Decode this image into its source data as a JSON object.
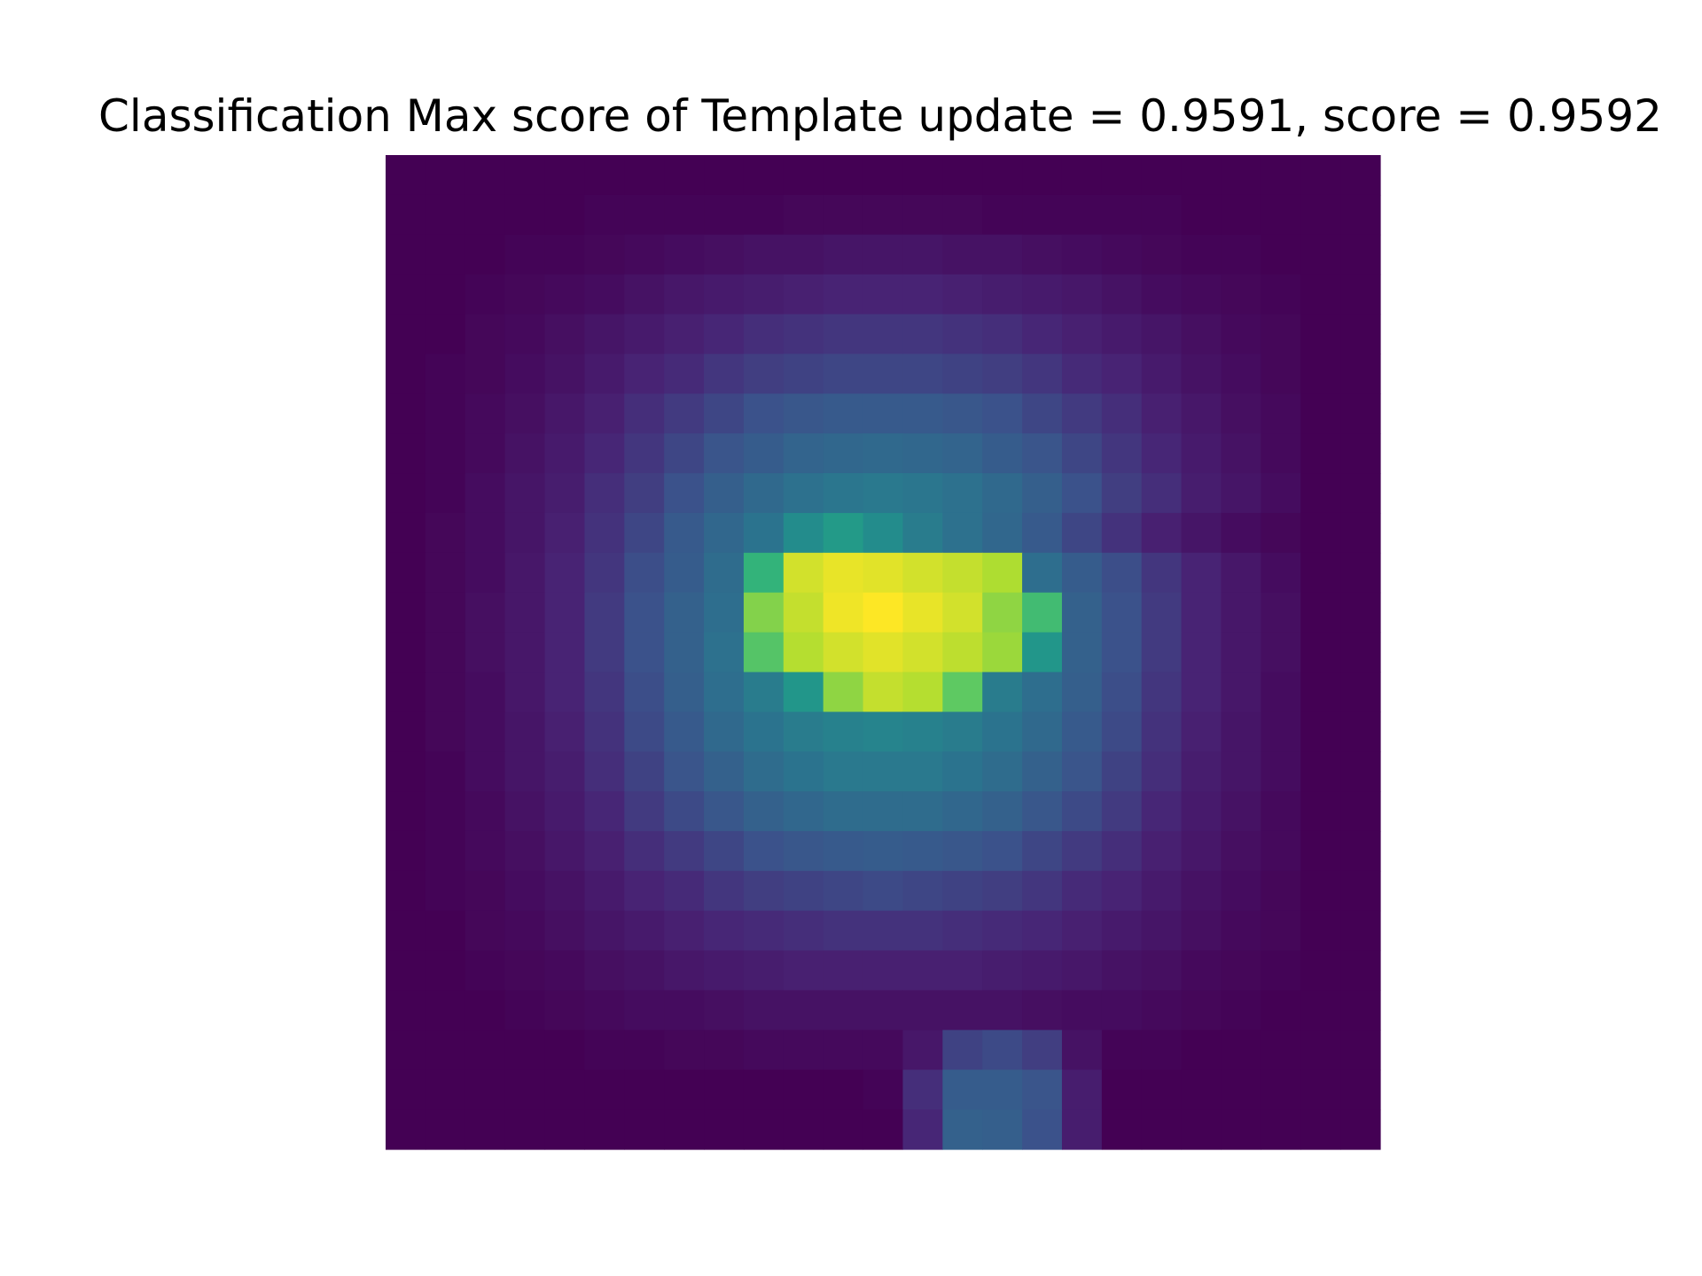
{
  "chart_data": {
    "type": "heatmap",
    "title": "Classification Max score of Template update = 0.9591, score = 0.9592",
    "colormap": "viridis",
    "axes_visible": false,
    "grid": false,
    "legend": "none",
    "rows": 25,
    "cols": 25,
    "vmin": 0.0,
    "vmax": 0.9592,
    "values": [
      [
        0,
        0,
        0,
        0,
        0,
        0,
        0,
        0,
        0,
        0,
        0,
        0,
        0,
        0,
        0,
        0,
        0,
        0,
        0,
        0,
        0,
        0,
        0,
        0,
        0
      ],
      [
        0,
        0,
        0,
        0,
        0,
        0.01,
        0.01,
        0.01,
        0.01,
        0.01,
        0.02,
        0.02,
        0.02,
        0.02,
        0.02,
        0.01,
        0.01,
        0.01,
        0.01,
        0.01,
        0,
        0,
        0,
        0,
        0
      ],
      [
        0,
        0,
        0,
        0.01,
        0.01,
        0.02,
        0.03,
        0.04,
        0.05,
        0.06,
        0.06,
        0.07,
        0.07,
        0.07,
        0.06,
        0.06,
        0.05,
        0.04,
        0.03,
        0.02,
        0.01,
        0.01,
        0,
        0,
        0
      ],
      [
        0,
        0,
        0.01,
        0.02,
        0.03,
        0.04,
        0.06,
        0.08,
        0.09,
        0.1,
        0.11,
        0.12,
        0.12,
        0.12,
        0.11,
        0.1,
        0.09,
        0.08,
        0.06,
        0.04,
        0.03,
        0.02,
        0.01,
        0,
        0
      ],
      [
        0,
        0,
        0.02,
        0.03,
        0.05,
        0.07,
        0.09,
        0.11,
        0.13,
        0.15,
        0.16,
        0.17,
        0.17,
        0.17,
        0.16,
        0.15,
        0.13,
        0.11,
        0.09,
        0.07,
        0.05,
        0.03,
        0.02,
        0,
        0
      ],
      [
        0,
        0.01,
        0.02,
        0.04,
        0.06,
        0.09,
        0.12,
        0.14,
        0.17,
        0.19,
        0.2,
        0.21,
        0.21,
        0.21,
        0.2,
        0.19,
        0.17,
        0.14,
        0.12,
        0.09,
        0.06,
        0.04,
        0.02,
        0,
        0
      ],
      [
        0,
        0.01,
        0.03,
        0.05,
        0.08,
        0.11,
        0.15,
        0.18,
        0.21,
        0.24,
        0.26,
        0.27,
        0.27,
        0.27,
        0.26,
        0.24,
        0.21,
        0.18,
        0.15,
        0.11,
        0.08,
        0.05,
        0.03,
        0,
        0
      ],
      [
        0,
        0.01,
        0.03,
        0.06,
        0.09,
        0.13,
        0.17,
        0.21,
        0.25,
        0.28,
        0.31,
        0.32,
        0.33,
        0.32,
        0.31,
        0.28,
        0.25,
        0.21,
        0.17,
        0.13,
        0.09,
        0.06,
        0.03,
        0,
        0
      ],
      [
        0,
        0.01,
        0.04,
        0.07,
        0.1,
        0.15,
        0.19,
        0.24,
        0.29,
        0.33,
        0.36,
        0.38,
        0.39,
        0.38,
        0.36,
        0.33,
        0.29,
        0.24,
        0.19,
        0.15,
        0.1,
        0.07,
        0.04,
        0,
        0
      ],
      [
        0,
        0.02,
        0.04,
        0.07,
        0.11,
        0.16,
        0.21,
        0.27,
        0.32,
        0.37,
        0.46,
        0.52,
        0.46,
        0.4,
        0.36,
        0.32,
        0.27,
        0.21,
        0.16,
        0.11,
        0.07,
        0.04,
        0.02,
        0,
        0
      ],
      [
        0,
        0.02,
        0.04,
        0.08,
        0.12,
        0.17,
        0.23,
        0.28,
        0.34,
        0.63,
        0.9,
        0.93,
        0.92,
        0.9,
        0.88,
        0.85,
        0.35,
        0.28,
        0.23,
        0.17,
        0.12,
        0.08,
        0.04,
        0,
        0
      ],
      [
        0,
        0.02,
        0.05,
        0.08,
        0.12,
        0.18,
        0.24,
        0.3,
        0.35,
        0.78,
        0.88,
        0.94,
        0.96,
        0.93,
        0.9,
        0.8,
        0.66,
        0.3,
        0.24,
        0.18,
        0.12,
        0.08,
        0.05,
        0,
        0
      ],
      [
        0,
        0.02,
        0.05,
        0.08,
        0.12,
        0.18,
        0.24,
        0.3,
        0.36,
        0.7,
        0.86,
        0.9,
        0.92,
        0.9,
        0.87,
        0.82,
        0.5,
        0.3,
        0.24,
        0.18,
        0.12,
        0.08,
        0.05,
        0,
        0
      ],
      [
        0,
        0.02,
        0.04,
        0.08,
        0.12,
        0.17,
        0.23,
        0.29,
        0.35,
        0.4,
        0.5,
        0.8,
        0.88,
        0.86,
        0.72,
        0.4,
        0.35,
        0.29,
        0.23,
        0.17,
        0.12,
        0.08,
        0.04,
        0,
        0
      ],
      [
        0,
        0.02,
        0.04,
        0.07,
        0.11,
        0.16,
        0.22,
        0.27,
        0.33,
        0.37,
        0.4,
        0.42,
        0.43,
        0.42,
        0.4,
        0.37,
        0.33,
        0.27,
        0.22,
        0.16,
        0.11,
        0.07,
        0.04,
        0,
        0
      ],
      [
        0,
        0.01,
        0.04,
        0.07,
        0.1,
        0.15,
        0.2,
        0.25,
        0.3,
        0.34,
        0.37,
        0.39,
        0.39,
        0.39,
        0.37,
        0.34,
        0.3,
        0.25,
        0.2,
        0.15,
        0.1,
        0.07,
        0.04,
        0,
        0
      ],
      [
        0,
        0.01,
        0.03,
        0.06,
        0.09,
        0.13,
        0.18,
        0.22,
        0.26,
        0.3,
        0.32,
        0.34,
        0.34,
        0.34,
        0.32,
        0.3,
        0.26,
        0.22,
        0.18,
        0.13,
        0.09,
        0.06,
        0.03,
        0,
        0
      ],
      [
        0,
        0.01,
        0.03,
        0.05,
        0.08,
        0.11,
        0.15,
        0.18,
        0.21,
        0.24,
        0.26,
        0.27,
        0.28,
        0.27,
        0.26,
        0.24,
        0.21,
        0.18,
        0.15,
        0.11,
        0.08,
        0.05,
        0.03,
        0,
        0
      ],
      [
        0,
        0.01,
        0.02,
        0.04,
        0.06,
        0.09,
        0.12,
        0.14,
        0.17,
        0.19,
        0.2,
        0.21,
        0.22,
        0.21,
        0.2,
        0.19,
        0.17,
        0.14,
        0.12,
        0.09,
        0.06,
        0.04,
        0.02,
        0,
        0
      ],
      [
        0,
        0,
        0.02,
        0.03,
        0.05,
        0.07,
        0.09,
        0.11,
        0.13,
        0.14,
        0.15,
        0.16,
        0.16,
        0.16,
        0.15,
        0.14,
        0.13,
        0.11,
        0.09,
        0.07,
        0.05,
        0.03,
        0.02,
        0,
        0
      ],
      [
        0,
        0,
        0.01,
        0.02,
        0.03,
        0.05,
        0.06,
        0.08,
        0.09,
        0.1,
        0.11,
        0.11,
        0.11,
        0.11,
        0.11,
        0.1,
        0.09,
        0.08,
        0.06,
        0.05,
        0.03,
        0.02,
        0.01,
        0,
        0
      ],
      [
        0,
        0,
        0,
        0.01,
        0.02,
        0.03,
        0.04,
        0.04,
        0.05,
        0.06,
        0.06,
        0.06,
        0.06,
        0.06,
        0.06,
        0.06,
        0.05,
        0.04,
        0.04,
        0.03,
        0.02,
        0.01,
        0,
        0,
        0
      ],
      [
        0,
        0,
        0,
        0,
        0,
        0.01,
        0.01,
        0.02,
        0.02,
        0.03,
        0.03,
        0.03,
        0.03,
        0.08,
        0.2,
        0.22,
        0.19,
        0.06,
        0.01,
        0.01,
        0,
        0,
        0,
        0,
        0
      ],
      [
        0,
        0,
        0,
        0,
        0,
        0,
        0,
        0,
        0,
        0,
        0,
        0,
        0.01,
        0.15,
        0.28,
        0.28,
        0.25,
        0.1,
        0,
        0,
        0,
        0,
        0,
        0,
        0
      ],
      [
        0,
        0,
        0,
        0,
        0,
        0,
        0,
        0,
        0,
        0,
        0,
        0,
        0,
        0.13,
        0.3,
        0.29,
        0.24,
        0.1,
        0,
        0,
        0,
        0,
        0,
        0,
        0
      ]
    ]
  }
}
